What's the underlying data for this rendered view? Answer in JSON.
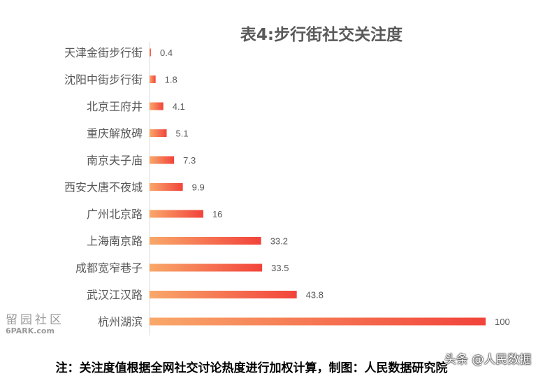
{
  "chart_data": {
    "type": "bar",
    "orientation": "horizontal",
    "title": "表4:步行街社交关注度",
    "categories": [
      "天津金街步行街",
      "沈阳中街步行街",
      "北京王府井",
      "重庆解放碑",
      "南京夫子庙",
      "西安大唐不夜城",
      "广州北京路",
      "上海南京路",
      "成都宽窄巷子",
      "武汉江汉路",
      "杭州湖滨"
    ],
    "values": [
      0.4,
      1.8,
      4.1,
      5.1,
      7.3,
      9.9,
      16,
      33.2,
      33.5,
      43.8,
      100
    ],
    "value_labels": [
      "0.4",
      "1.8",
      "4.1",
      "5.1",
      "7.3",
      "9.9",
      "16",
      "33.2",
      "33.5",
      "43.8",
      "100"
    ],
    "xlim": [
      0,
      100
    ],
    "grid": false,
    "gradient_colors": [
      "#f9a86a",
      "#f2433b"
    ]
  },
  "footnote": "注：关注度值根据全网社交讨论热度进行加权计算，制图：人民数据研究院",
  "watermark_left_cn": "留园社区",
  "watermark_left_en": "6PARK.com",
  "watermark_right": "头条 @人民数据"
}
